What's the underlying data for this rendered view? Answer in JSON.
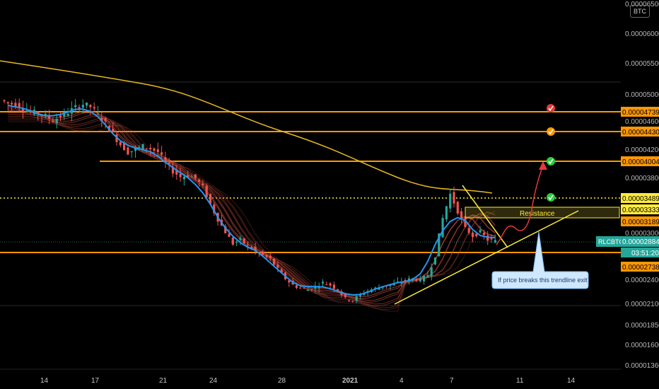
{
  "symbol": "RLCBTC",
  "currency": "BTC",
  "countdown": "03:51:20",
  "annotations": {
    "resistance": "Resistance",
    "note": "If price breaks this trendline exit"
  },
  "colors": {
    "background": "#000000",
    "level": "#ff9800",
    "resistance_box": "#ffeb3b",
    "trendline": "#ffeb3b",
    "ma_long": "#e8b923",
    "ma_fast": "#2196f3",
    "bull": "#26a69a",
    "bear": "#ef5350",
    "ribbon": "#b84a3c",
    "check_green": "#2ecc40",
    "check_orange": "#ff9800",
    "check_red": "#e53935",
    "arrow": "#e53935"
  },
  "chart_data": {
    "type": "candlestick",
    "price_axis": {
      "ticks": [
        "0.00006500",
        "0.00006000",
        "0.00005500",
        "0.00005000",
        "0.00004600",
        "0.00004200",
        "0.00003800",
        "0.00003000",
        "0.00002400",
        "0.00002100",
        "0.00001850",
        "0.00001600",
        "0.00001360"
      ]
    },
    "x_axis": {
      "ticks": [
        "14",
        "17",
        "21",
        "24",
        "28",
        "2021",
        "4",
        "7",
        "11",
        "14"
      ]
    },
    "levels": [
      {
        "price": "0.00004739",
        "check": "red"
      },
      {
        "price": "0.00004430",
        "check": "orange"
      },
      {
        "price": "0.00004004",
        "check": "green"
      },
      {
        "price": "0.00003489",
        "check": "green",
        "dotted": true
      },
      {
        "price": "0.00003333",
        "check": null
      },
      {
        "price": "0.00003189",
        "check": null
      },
      {
        "price": "0.00002738",
        "check": null
      }
    ],
    "current_price": "0.00002884",
    "approx_close_series": [
      4.85e-05,
      4.84e-05,
      4.78e-05,
      4.72e-05,
      4.7e-05,
      4.66e-05,
      4.6e-05,
      4.66e-05,
      4.72e-05,
      4.79e-05,
      4.84e-05,
      4.8e-05,
      4.68e-05,
      4.55e-05,
      4.4e-05,
      4.26e-05,
      4.15e-05,
      4.19e-05,
      4.23e-05,
      4.2e-05,
      4.15e-05,
      4e-05,
      3.88e-05,
      3.8e-05,
      3.82e-05,
      3.78e-05,
      3.65e-05,
      3.4e-05,
      3.18e-05,
      3e-05,
      2.85e-05,
      2.9e-05,
      2.82e-05,
      2.75e-05,
      2.7e-05,
      2.65e-05,
      2.52e-05,
      2.4e-05,
      2.32e-05,
      2.28e-05,
      2.26e-05,
      2.3e-05,
      2.35e-05,
      2.32e-05,
      2.26e-05,
      2.15e-05,
      2.13e-05,
      2.2e-05,
      2.25e-05,
      2.28e-05,
      2.3e-05,
      2.32e-05,
      2.35e-05,
      2.38e-05,
      2.4e-05,
      2.38e-05,
      2.45e-05,
      2.7e-05,
      3.2e-05,
      3.55e-05,
      3.3e-05,
      3.05e-05,
      2.95e-05,
      3e-05,
      2.9e-05,
      2.88e-05
    ]
  }
}
